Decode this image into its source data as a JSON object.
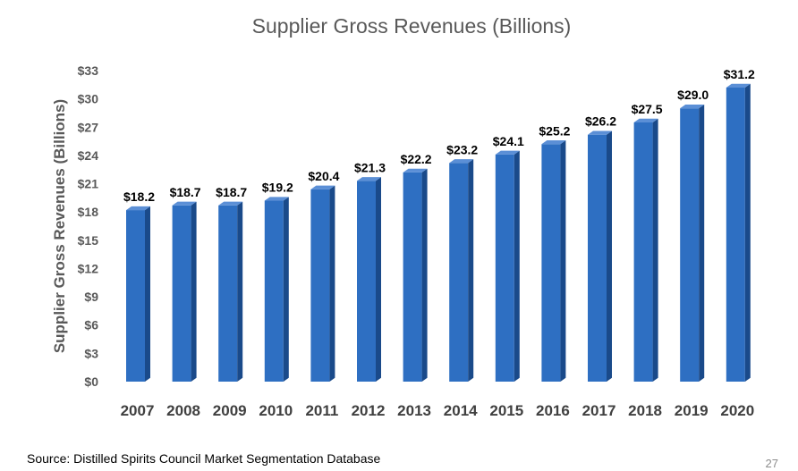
{
  "chart_data": {
    "type": "bar",
    "title": "Supplier Gross Revenues (Billions)",
    "xlabel": "",
    "ylabel": "Supplier Gross Revenues (Billions)",
    "categories": [
      "2007",
      "2008",
      "2009",
      "2010",
      "2011",
      "2012",
      "2013",
      "2014",
      "2015",
      "2016",
      "2017",
      "2018",
      "2019",
      "2020"
    ],
    "values": [
      18.2,
      18.7,
      18.7,
      19.2,
      20.4,
      21.3,
      22.2,
      23.2,
      24.1,
      25.2,
      26.2,
      27.5,
      29.0,
      31.2
    ],
    "data_labels": [
      "$18.2",
      "$18.7",
      "$18.7",
      "$19.2",
      "$20.4",
      "$21.3",
      "$22.2",
      "$23.2",
      "$24.1",
      "$25.2",
      "$26.2",
      "$27.5",
      "$29.0",
      "$31.2"
    ],
    "ylim": [
      0,
      33
    ],
    "yticks": [
      0,
      3,
      6,
      9,
      12,
      15,
      18,
      21,
      24,
      27,
      30,
      33
    ],
    "ytick_labels": [
      "$0",
      "$3",
      "$6",
      "$9",
      "$12",
      "$15",
      "$18",
      "$21",
      "$24",
      "$27",
      "$30",
      "$33"
    ],
    "grid": false,
    "legend": "none",
    "bar_color": "#2e6fc2"
  },
  "footer": {
    "source": "Source: Distilled Spirits Council Market Segmentation Database",
    "page_number": "27"
  }
}
